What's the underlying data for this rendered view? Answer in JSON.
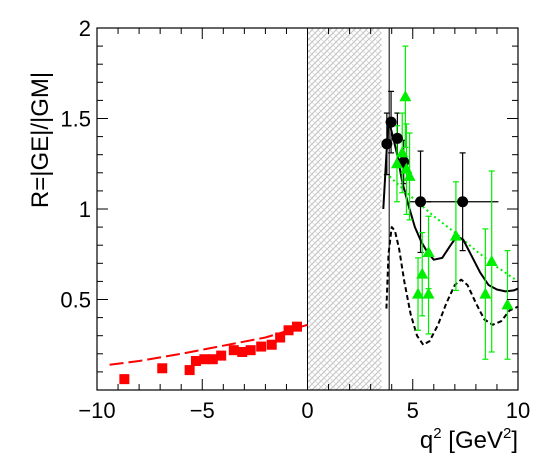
{
  "chart_data": {
    "type": "scatter",
    "ylabel": "R=|GE|/|GM|",
    "xlabel_main": "q",
    "xlabel_sup": "2",
    "xlabel_unit_open": " [GeV",
    "xlabel_unit_sup": "2",
    "xlabel_unit_close": "]",
    "xlim": [
      -10,
      10
    ],
    "ylim": [
      0,
      2
    ],
    "x_ticks": [
      {
        "value": -10,
        "label": "−10"
      },
      {
        "value": -5,
        "label": "−5"
      },
      {
        "value": 0,
        "label": "0"
      },
      {
        "value": 5,
        "label": "5"
      },
      {
        "value": 10,
        "label": "10"
      }
    ],
    "y_ticks": [
      {
        "value": 0.5,
        "label": "0.5"
      },
      {
        "value": 1,
        "label": "1"
      },
      {
        "value": 1.5,
        "label": "1.5"
      },
      {
        "value": 2,
        "label": "2"
      }
    ],
    "unphysical_region": [
      0,
      3.52
    ],
    "threshold_line": 3.88,
    "series": [
      {
        "marker": "square",
        "color": "#ff0000",
        "points": [
          {
            "x": -8.7,
            "y": 0.06
          },
          {
            "x": -6.9,
            "y": 0.12
          },
          {
            "x": -5.6,
            "y": 0.11
          },
          {
            "x": -5.3,
            "y": 0.16
          },
          {
            "x": -4.9,
            "y": 0.17
          },
          {
            "x": -4.5,
            "y": 0.17
          },
          {
            "x": -4.1,
            "y": 0.19
          },
          {
            "x": -3.5,
            "y": 0.22
          },
          {
            "x": -3.1,
            "y": 0.21
          },
          {
            "x": -2.7,
            "y": 0.22
          },
          {
            "x": -2.2,
            "y": 0.24
          },
          {
            "x": -1.7,
            "y": 0.25
          },
          {
            "x": -1.3,
            "y": 0.29
          },
          {
            "x": -0.9,
            "y": 0.33
          },
          {
            "x": -0.5,
            "y": 0.35
          }
        ]
      },
      {
        "marker": "circle",
        "color": "#000000",
        "points": [
          {
            "x": 3.77,
            "y": 1.36,
            "ey": 0.17
          },
          {
            "x": 3.97,
            "y": 1.48,
            "ey": 0.17
          },
          {
            "x": 4.27,
            "y": 1.39,
            "ey": 0.14
          },
          {
            "x": 4.57,
            "y": 1.26,
            "ey": 0.12
          },
          {
            "x": 5.37,
            "y": 1.04,
            "ey": 0.28,
            "ex": 0.5
          },
          {
            "x": 7.37,
            "y": 1.04,
            "ey": 0.27,
            "ex": 1.7
          }
        ]
      },
      {
        "marker": "triangle",
        "color": "#00ee00",
        "points": [
          {
            "x": 4.25,
            "y": 1.25,
            "ey": 0.21
          },
          {
            "x": 4.5,
            "y": 1.31,
            "ey": 0.22
          },
          {
            "x": 4.65,
            "y": 1.62,
            "ey": 0.28
          },
          {
            "x": 4.7,
            "y": 1.22,
            "ey": 0.25
          },
          {
            "x": 4.85,
            "y": 1.18,
            "ey": 0.24
          },
          {
            "x": 5.25,
            "y": 0.53,
            "ey": 0.2
          },
          {
            "x": 5.45,
            "y": 0.64,
            "ey": 0.23
          },
          {
            "x": 5.75,
            "y": 0.53,
            "ey": 0.22
          },
          {
            "x": 5.75,
            "y": 0.76,
            "ey": 0.2
          },
          {
            "x": 7.05,
            "y": 0.85,
            "ey": 0.3
          },
          {
            "x": 8.45,
            "y": 0.53,
            "ey": 0.36
          },
          {
            "x": 8.75,
            "y": 0.71,
            "ey": 0.5
          },
          {
            "x": 9.5,
            "y": 0.47,
            "ey": 0.3
          }
        ]
      }
    ],
    "curves": [
      {
        "style": "dashed",
        "color": "#ff0000",
        "points": [
          [
            -9.4,
            0.14
          ],
          [
            -8,
            0.16
          ],
          [
            -6,
            0.2
          ],
          [
            -4,
            0.245
          ],
          [
            -2,
            0.29
          ],
          [
            0,
            0.36
          ]
        ]
      },
      {
        "style": "dotted",
        "color": "#00ee00",
        "points": [
          [
            3.9,
            1.18
          ],
          [
            5,
            1.06
          ],
          [
            6,
            0.96
          ],
          [
            7,
            0.87
          ],
          [
            8,
            0.77
          ],
          [
            9,
            0.68
          ],
          [
            10,
            0.6
          ]
        ]
      },
      {
        "style": "solid",
        "color": "#000000",
        "points": [
          [
            3.6,
            1.0
          ],
          [
            3.75,
            1.3
          ],
          [
            3.85,
            1.48
          ],
          [
            3.95,
            1.45
          ],
          [
            4.1,
            1.38
          ],
          [
            4.3,
            1.28
          ],
          [
            4.5,
            1.15
          ],
          [
            4.8,
            1.02
          ],
          [
            5.1,
            0.9
          ],
          [
            5.4,
            0.82
          ],
          [
            5.7,
            0.76
          ],
          [
            6,
            0.72
          ],
          [
            6.4,
            0.73
          ],
          [
            6.8,
            0.8
          ],
          [
            7.1,
            0.85
          ],
          [
            7.4,
            0.83
          ],
          [
            7.8,
            0.74
          ],
          [
            8.2,
            0.65
          ],
          [
            8.6,
            0.58
          ],
          [
            9,
            0.555
          ],
          [
            9.4,
            0.545
          ],
          [
            9.8,
            0.55
          ],
          [
            10,
            0.56
          ]
        ]
      },
      {
        "style": "dashed",
        "color": "#000000",
        "points": [
          [
            3.75,
            0.45
          ],
          [
            3.85,
            0.75
          ],
          [
            4.0,
            0.9
          ],
          [
            4.15,
            0.88
          ],
          [
            4.35,
            0.78
          ],
          [
            4.6,
            0.6
          ],
          [
            4.9,
            0.42
          ],
          [
            5.2,
            0.3
          ],
          [
            5.5,
            0.25
          ],
          [
            5.8,
            0.27
          ],
          [
            6.2,
            0.36
          ],
          [
            6.6,
            0.48
          ],
          [
            7.0,
            0.58
          ],
          [
            7.3,
            0.61
          ],
          [
            7.6,
            0.58
          ],
          [
            8.0,
            0.48
          ],
          [
            8.4,
            0.39
          ],
          [
            8.8,
            0.36
          ],
          [
            9.2,
            0.38
          ],
          [
            9.6,
            0.44
          ],
          [
            10,
            0.46
          ]
        ]
      }
    ]
  }
}
